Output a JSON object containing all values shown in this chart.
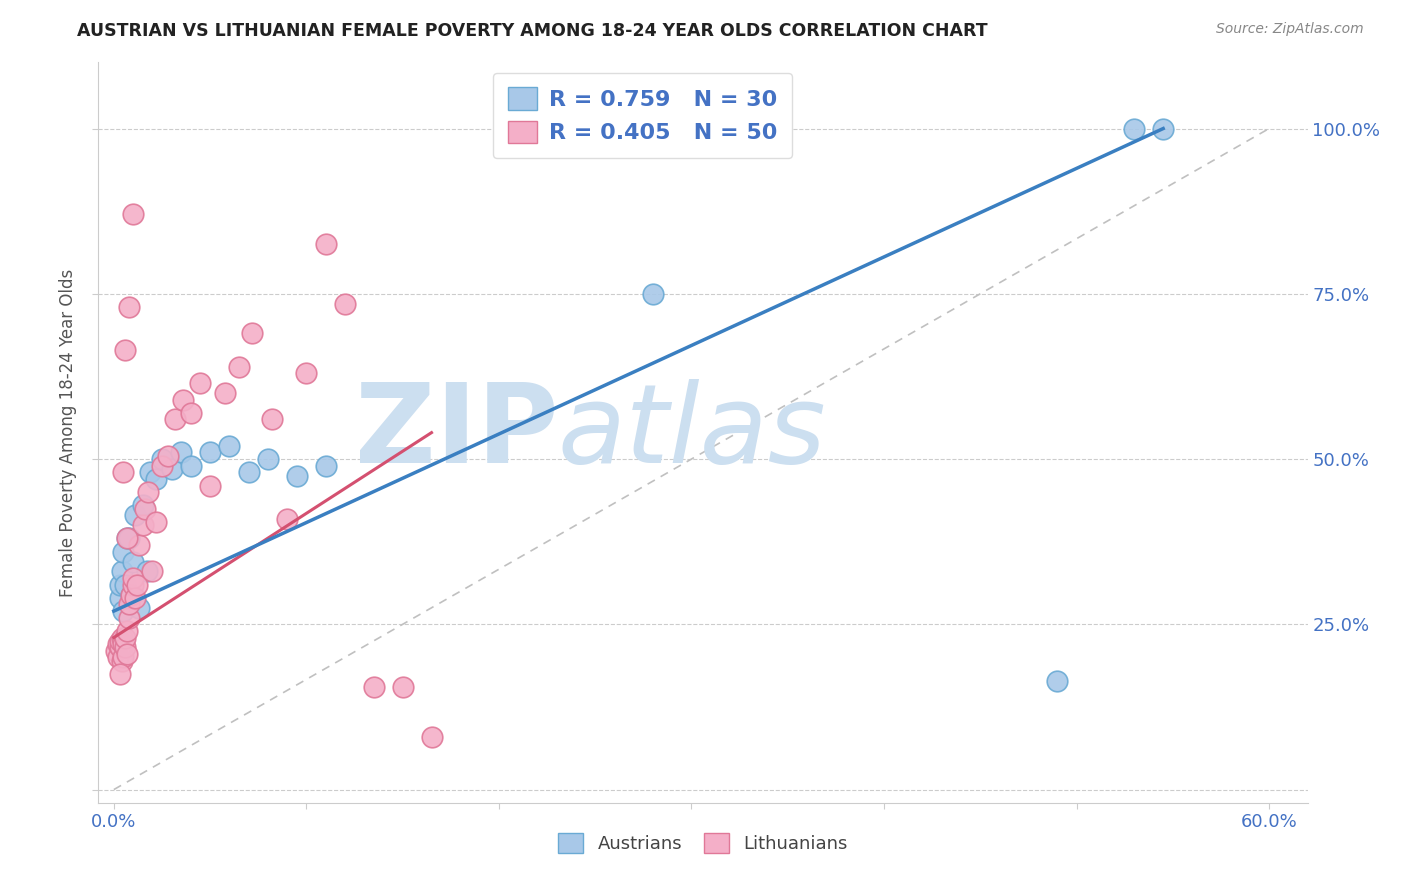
{
  "title": "AUSTRIAN VS LITHUANIAN FEMALE POVERTY AMONG 18-24 YEAR OLDS CORRELATION CHART",
  "source": "Source: ZipAtlas.com",
  "ylabel": "Female Poverty Among 18-24 Year Olds",
  "x_tick_positions": [
    0.0,
    0.1,
    0.2,
    0.3,
    0.4,
    0.5,
    0.6
  ],
  "x_tick_labels": [
    "0.0%",
    "",
    "",
    "",
    "",
    "",
    "60.0%"
  ],
  "y_tick_positions": [
    0.0,
    0.25,
    0.5,
    0.75,
    1.0
  ],
  "y_tick_labels_right": [
    "",
    "25.0%",
    "50.0%",
    "75.0%",
    "100.0%"
  ],
  "blue_scatter_color": "#a8c8e8",
  "blue_edge_color": "#6aaad4",
  "pink_scatter_color": "#f4afc8",
  "pink_edge_color": "#e07898",
  "blue_line_color": "#3a7fc1",
  "pink_line_color": "#d45070",
  "ref_line_color": "#c0c0c0",
  "watermark_color": "#ccdff0",
  "title_color": "#222222",
  "source_color": "#888888",
  "axis_label_color": "#555555",
  "tick_color": "#4472c4",
  "austrians_x": [
    0.003,
    0.003,
    0.004,
    0.005,
    0.005,
    0.006,
    0.007,
    0.008,
    0.009,
    0.01,
    0.011,
    0.013,
    0.015,
    0.017,
    0.019,
    0.022,
    0.025,
    0.03,
    0.035,
    0.04,
    0.05,
    0.06,
    0.07,
    0.08,
    0.095,
    0.11,
    0.28,
    0.49,
    0.53,
    0.545
  ],
  "austrians_y": [
    0.29,
    0.31,
    0.33,
    0.27,
    0.36,
    0.31,
    0.38,
    0.38,
    0.295,
    0.345,
    0.415,
    0.275,
    0.43,
    0.33,
    0.48,
    0.47,
    0.5,
    0.485,
    0.51,
    0.49,
    0.51,
    0.52,
    0.48,
    0.5,
    0.475,
    0.49,
    0.75,
    0.165,
    1.0,
    1.0
  ],
  "lithuanians_x": [
    0.001,
    0.002,
    0.002,
    0.003,
    0.003,
    0.004,
    0.004,
    0.005,
    0.005,
    0.006,
    0.006,
    0.007,
    0.007,
    0.008,
    0.008,
    0.009,
    0.01,
    0.01,
    0.011,
    0.012,
    0.013,
    0.015,
    0.016,
    0.018,
    0.02,
    0.022,
    0.025,
    0.028,
    0.032,
    0.036,
    0.04,
    0.045,
    0.05,
    0.058,
    0.065,
    0.072,
    0.082,
    0.09,
    0.1,
    0.11,
    0.12,
    0.135,
    0.15,
    0.165,
    0.01,
    0.008,
    0.006,
    0.005,
    0.007,
    0.003
  ],
  "lithuanians_y": [
    0.21,
    0.2,
    0.22,
    0.215,
    0.225,
    0.195,
    0.23,
    0.2,
    0.22,
    0.215,
    0.23,
    0.205,
    0.24,
    0.26,
    0.28,
    0.295,
    0.31,
    0.32,
    0.29,
    0.31,
    0.37,
    0.4,
    0.425,
    0.45,
    0.33,
    0.405,
    0.49,
    0.505,
    0.56,
    0.59,
    0.57,
    0.615,
    0.46,
    0.6,
    0.64,
    0.69,
    0.56,
    0.41,
    0.63,
    0.825,
    0.735,
    0.155,
    0.155,
    0.08,
    0.87,
    0.73,
    0.665,
    0.48,
    0.38,
    0.175
  ],
  "blue_line_x": [
    0.0,
    0.545
  ],
  "blue_line_y": [
    0.27,
    1.0
  ],
  "pink_line_x": [
    0.0,
    0.165
  ],
  "pink_line_y": [
    0.23,
    0.54
  ],
  "ref_line_x": [
    0.0,
    0.6
  ],
  "ref_line_y": [
    0.0,
    1.0
  ],
  "legend1_label": "R = 0.759   N = 30",
  "legend2_label": "R = 0.405   N = 50",
  "legend_bottom_labels": [
    "Austrians",
    "Lithuanians"
  ]
}
